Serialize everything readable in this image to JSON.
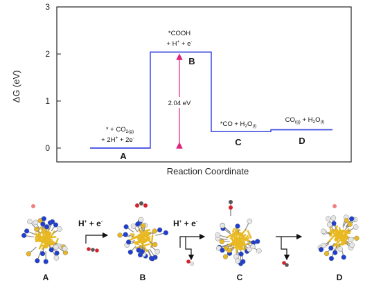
{
  "chart_data": {
    "type": "line",
    "xlabel": "Reaction Coordinate",
    "ylabel": "ΔG (eV)",
    "ylim": [
      0,
      3
    ],
    "yticks": [
      "0",
      "1",
      "2",
      "3"
    ],
    "grid": false,
    "stages": [
      "A",
      "B",
      "C",
      "D"
    ],
    "series": [
      {
        "values": [
          0.0,
          2.04,
          0.35,
          0.39
        ]
      }
    ],
    "annotations": {
      "gap_label": "2.04 eV",
      "A": {
        "line1": "* + CO",
        "line1_sub": "2(g)",
        "line2": "+ 2H",
        "line2_sup1": "+",
        "line2_b": " + 2e",
        "line2_sup2": "-"
      },
      "B": {
        "line1": "*COOH",
        "line2": "+ H",
        "line2_sup1": "+",
        "line2_b": " + e",
        "line2_sup2": "-"
      },
      "C": {
        "line1": "*CO + H",
        "line1_sub1": "2",
        "line1_b": "O",
        "line1_sub2": "(l)"
      },
      "D": {
        "line1": "CO",
        "line1_sub1": "(g)",
        "line1_b": " + H",
        "line1_sub2": "2",
        "line1_c": "O",
        "line1_sub3": "(l)"
      }
    },
    "colors": {
      "line": "#3a47e0",
      "arrow": "#e0237f",
      "frame": "#222222"
    }
  },
  "scheme": {
    "step_label": "H",
    "step_sup1": "+",
    "step_b": " + e",
    "step_sup2": "-",
    "clusters": [
      "A",
      "B",
      "C",
      "D"
    ],
    "colors": {
      "gold": "#e8b923",
      "blue": "#1f3fd0",
      "white": "#e6e6e6",
      "red": "#d4242b",
      "gray": "#555555"
    }
  }
}
